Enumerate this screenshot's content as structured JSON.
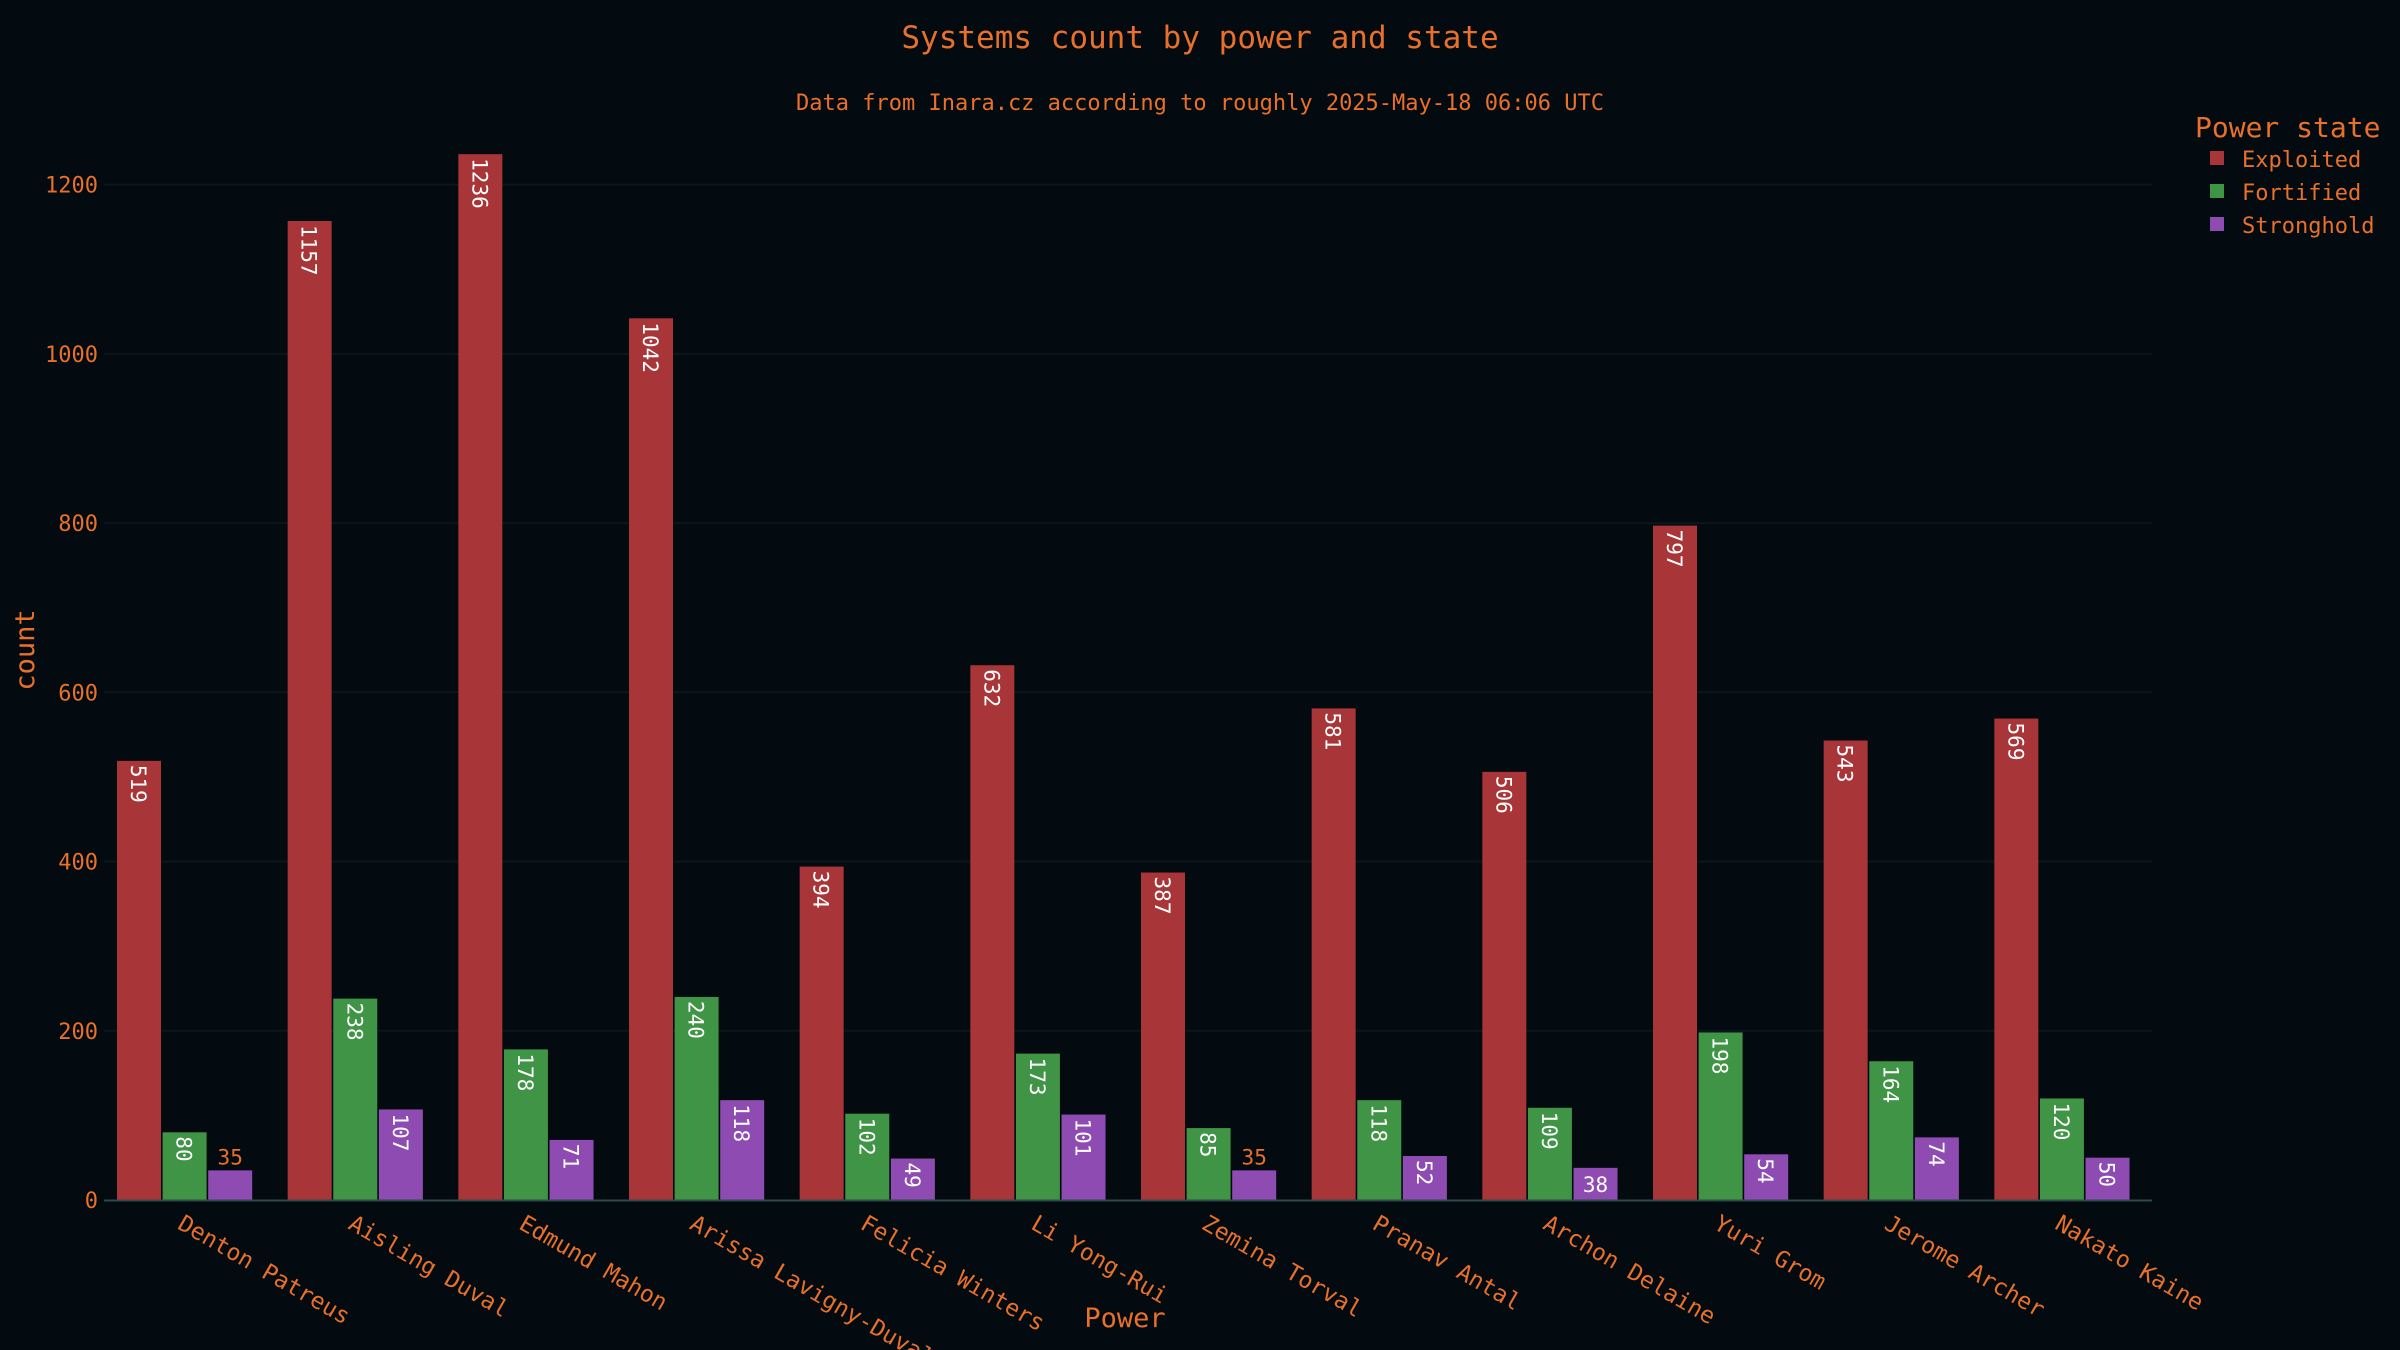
{
  "chart_data": {
    "type": "bar",
    "title": "Systems count by power and state",
    "subtitle": "Data from Inara.cz according to roughly 2025-May-18 06:06 UTC",
    "xlabel": "Power",
    "ylabel": "count",
    "ylim": [
      0,
      1300
    ],
    "yticks": [
      0,
      200,
      400,
      600,
      800,
      1000,
      1200
    ],
    "grid": true,
    "legend": {
      "title": "Power state",
      "position": "top-right"
    },
    "categories": [
      "Denton Patreus",
      "Aisling Duval",
      "Edmund Mahon",
      "Arissa Lavigny-Duval",
      "Felicia Winters",
      "Li Yong-Rui",
      "Zemina Torval",
      "Pranav Antal",
      "Archon Delaine",
      "Yuri Grom",
      "Jerome Archer",
      "Nakato Kaine"
    ],
    "series": [
      {
        "name": "Exploited",
        "color": "#a83538",
        "values": [
          519,
          1157,
          1236,
          1042,
          394,
          632,
          387,
          581,
          506,
          797,
          543,
          569
        ]
      },
      {
        "name": "Fortified",
        "color": "#409445",
        "values": [
          80,
          238,
          178,
          240,
          102,
          173,
          85,
          118,
          109,
          198,
          164,
          120
        ]
      },
      {
        "name": "Stronghold",
        "color": "#8e4cb2",
        "values": [
          35,
          107,
          71,
          118,
          49,
          101,
          35,
          52,
          38,
          54,
          74,
          50
        ]
      }
    ]
  },
  "colors": {
    "background": "#030a10",
    "text": "#e8702a",
    "grid": "#0c161e",
    "bar_label_inside": "#ffffff",
    "bar_label_outside": "#e8702a"
  }
}
